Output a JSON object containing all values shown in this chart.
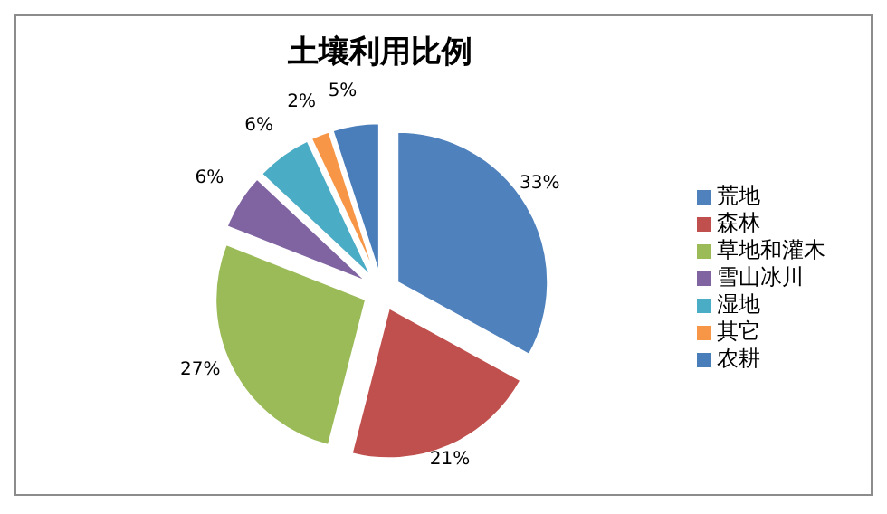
{
  "chart_data": {
    "type": "pie",
    "title": "土壤利用比例",
    "categories": [
      "荒地",
      "森林",
      "草地和灌木",
      "雪山冰川",
      "湿地",
      "其它",
      "农耕"
    ],
    "values": [
      33,
      21,
      27,
      6,
      6,
      2,
      5
    ],
    "colors": [
      "#4f81bd",
      "#c0504d",
      "#9bbb59",
      "#8064a2",
      "#4bacc6",
      "#f79646",
      "#4a7ebb"
    ],
    "value_labels": [
      "33%",
      "21%",
      "27%",
      "6%",
      "6%",
      "2%",
      "5%"
    ],
    "legend": "right"
  }
}
